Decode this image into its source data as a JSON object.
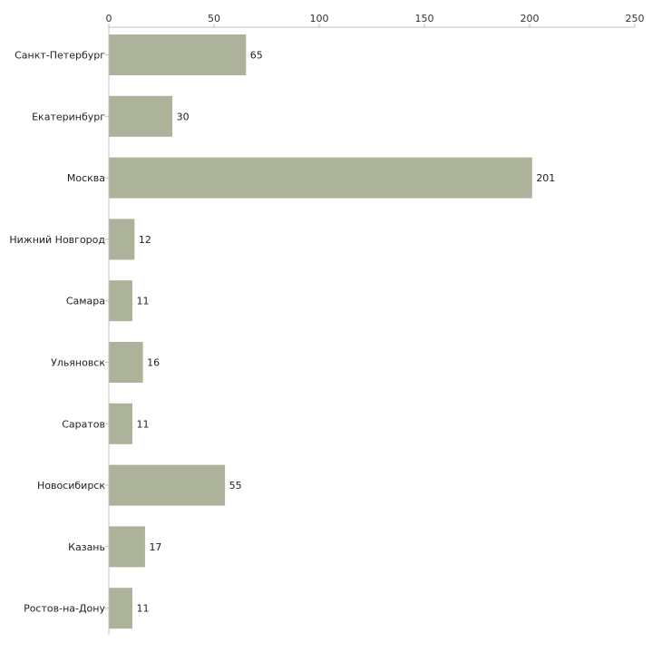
{
  "chart_data": {
    "type": "bar",
    "orientation": "horizontal",
    "title": "",
    "xlabel": "",
    "ylabel": "",
    "xlim": [
      0,
      250
    ],
    "ticks": [
      0,
      50,
      100,
      150,
      200,
      250
    ],
    "tick_labels": [
      "0",
      "50",
      "100",
      "150",
      "200",
      "250"
    ],
    "axis_position": "top",
    "grid": false,
    "legend": "none",
    "categories": [
      "Санкт-Петербург",
      "Екатеринбург",
      "Москва",
      "Нижний Новгород",
      "Самара",
      "Ульяновск",
      "Саратов",
      "Новосибирск",
      "Казань",
      "Ростов-на-Дону"
    ],
    "values": [
      65,
      30,
      201,
      12,
      11,
      16,
      11,
      55,
      17,
      11
    ],
    "value_labels": [
      "65",
      "30",
      "201",
      "12",
      "11",
      "16",
      "11",
      "55",
      "17",
      "11"
    ],
    "bar_color": "#adb39a",
    "axis_color": "#c0c0c0"
  }
}
